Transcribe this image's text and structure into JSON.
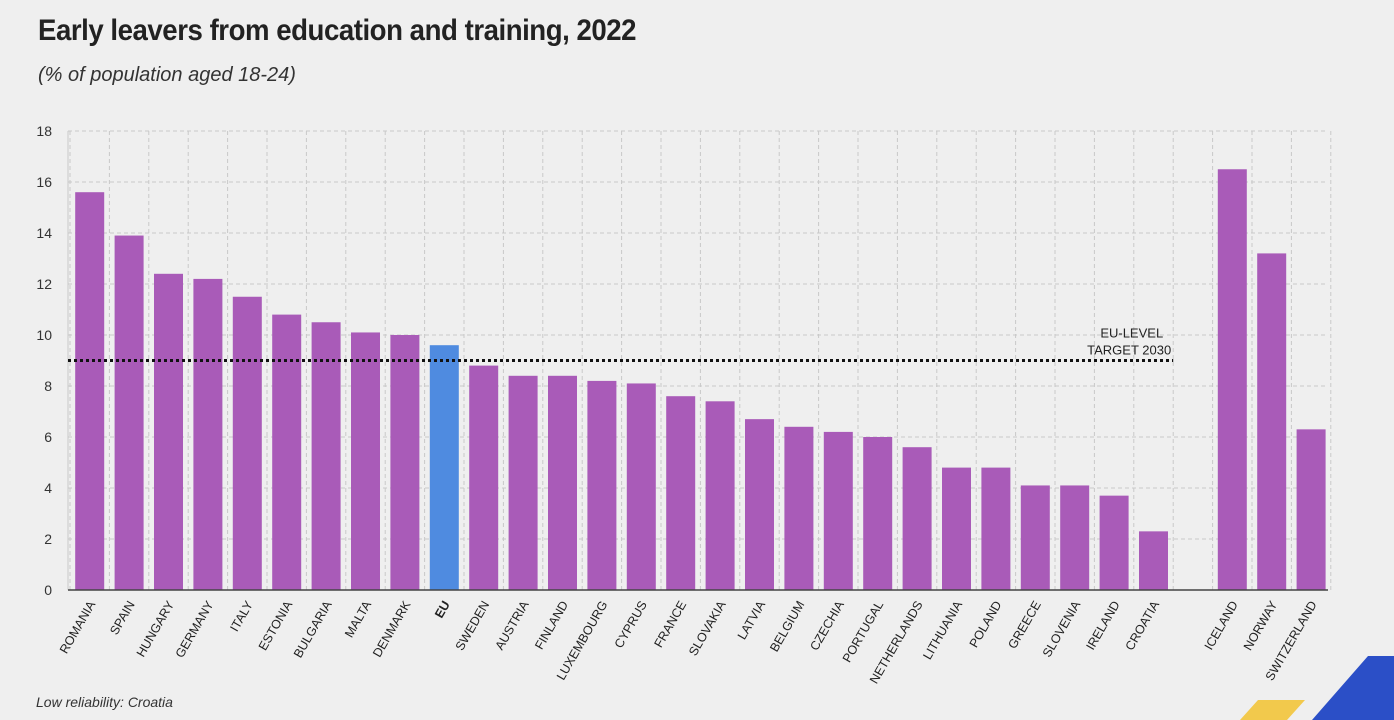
{
  "title": "Early leavers from education and training, 2022",
  "subtitle": "(% of population aged 18-24)",
  "footnote": "Low reliability: Croatia",
  "colors": {
    "bar": "#a95bb8",
    "highlight": "#4f8be0",
    "grid": "#c8c8c8",
    "axis": "#444444",
    "text": "#222222"
  },
  "chart_data": {
    "type": "bar",
    "title": "Early leavers from education and training, 2022",
    "subtitle": "(% of population aged 18-24)",
    "xlabel": "",
    "ylabel": "",
    "ylim": [
      0,
      18
    ],
    "yticks": [
      0,
      2,
      4,
      6,
      8,
      10,
      12,
      14,
      16,
      18
    ],
    "grid": true,
    "highlight_category": "EU",
    "categories": [
      "ROMANIA",
      "SPAIN",
      "HUNGARY",
      "GERMANY",
      "ITALY",
      "ESTONIA",
      "BULGARIA",
      "MALTA",
      "DENMARK",
      "EU",
      "SWEDEN",
      "AUSTRIA",
      "FINLAND",
      "LUXEMBOURG",
      "CYPRUS",
      "FRANCE",
      "SLOVAKIA",
      "LATVIA",
      "BELGIUM",
      "CZECHIA",
      "PORTUGAL",
      "NETHERLANDS",
      "LITHUANIA",
      "POLAND",
      "GREECE",
      "SLOVENIA",
      "IRELAND",
      "CROATIA",
      "ICELAND",
      "NORWAY",
      "SWITZERLAND"
    ],
    "values": [
      15.6,
      13.9,
      12.4,
      12.2,
      11.5,
      10.8,
      10.5,
      10.1,
      10.0,
      9.6,
      8.8,
      8.4,
      8.4,
      8.2,
      8.1,
      7.6,
      7.4,
      6.7,
      6.4,
      6.2,
      6.0,
      5.6,
      4.8,
      4.8,
      4.1,
      4.1,
      3.7,
      2.3,
      16.5,
      13.2,
      6.3
    ],
    "reference_line": {
      "value": 9,
      "label_line1": "EU-LEVEL",
      "label_line2": "TARGET 2030"
    }
  }
}
